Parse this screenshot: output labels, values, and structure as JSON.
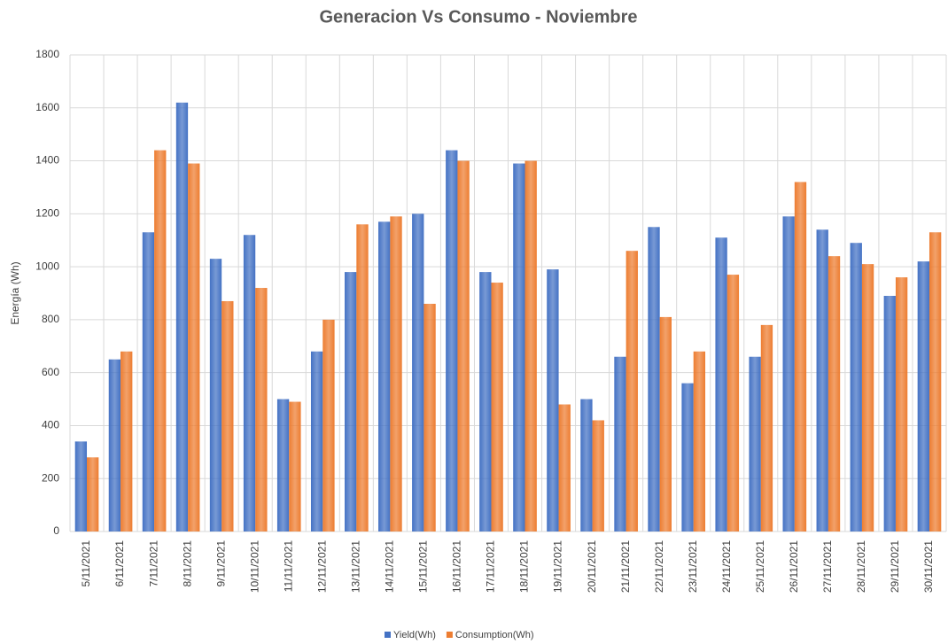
{
  "chart_data": {
    "type": "bar",
    "title": "Generacion Vs Consumo - Noviembre",
    "y_label": "Energía (Wh)",
    "categories": [
      "5/11/2021",
      "6/11/2021",
      "7/11/2021",
      "8/11/2021",
      "9/11/2021",
      "10/11/2021",
      "11/11/2021",
      "12/11/2021",
      "13/11/2021",
      "14/11/2021",
      "15/11/2021",
      "16/11/2021",
      "17/11/2021",
      "18/11/2021",
      "19/11/2021",
      "20/11/2021",
      "21/11/2021",
      "22/11/2021",
      "23/11/2021",
      "24/11/2021",
      "25/11/2021",
      "26/11/2021",
      "27/11/2021",
      "28/11/2021",
      "29/11/2021",
      "30/11/2021"
    ],
    "series": [
      {
        "name": "Yield(Wh)",
        "color": "#4472c4",
        "values": [
          340,
          650,
          1130,
          1620,
          1030,
          1120,
          500,
          680,
          980,
          1170,
          1200,
          1440,
          980,
          1390,
          990,
          500,
          660,
          1150,
          560,
          1110,
          660,
          1190,
          1140,
          1090,
          890,
          1020
        ]
      },
      {
        "name": "Consumption(Wh)",
        "color": "#ed7d31",
        "values": [
          280,
          680,
          1440,
          1390,
          870,
          920,
          490,
          800,
          1160,
          1190,
          860,
          1400,
          940,
          1400,
          480,
          420,
          1060,
          810,
          680,
          970,
          780,
          1320,
          1040,
          1010,
          960,
          1130
        ]
      }
    ],
    "ylim": [
      0,
      1800
    ],
    "yticks": [
      0,
      200,
      400,
      600,
      800,
      1000,
      1200,
      1400,
      1600,
      1800
    ],
    "grid": true,
    "legend": "bottom"
  }
}
